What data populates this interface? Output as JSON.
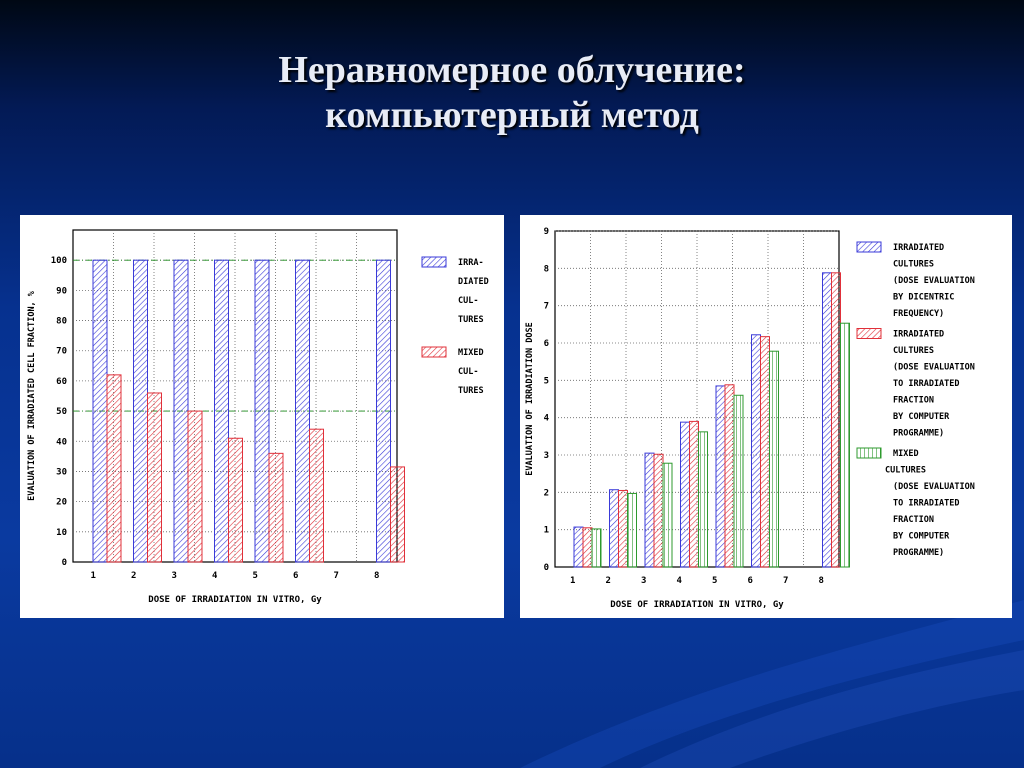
{
  "slide": {
    "title_line1": "Неравномерное облучение:",
    "title_line2": "компьютерный метод"
  },
  "chart_data": [
    {
      "type": "bar",
      "xlabel": "DOSE OF IRRADIATION IN VITRO, Gy",
      "ylabel": "EVALUATION OF IRRADIATED CELL FRACTION, %",
      "ylim": [
        0,
        110
      ],
      "yticks": [
        0,
        10,
        20,
        30,
        40,
        50,
        60,
        70,
        80,
        90,
        100
      ],
      "categories": [
        "1",
        "2",
        "3",
        "4",
        "5",
        "6",
        "7",
        "8"
      ],
      "grid": true,
      "reference_lines": [
        100,
        50
      ],
      "legend_position": "right",
      "series": [
        {
          "name": "IRRA- DIATED CUL- TURES",
          "legend_lines": [
            "IRRA-",
            "DIATED",
            "CUL-",
            "TURES"
          ],
          "color": "#3a3ad8",
          "values": [
            100,
            100,
            100,
            100,
            100,
            100,
            null,
            100
          ]
        },
        {
          "name": "MIXED CUL- TURES",
          "legend_lines": [
            "MIXED",
            "CUL-",
            "TURES"
          ],
          "color": "#e0303a",
          "values": [
            62,
            56,
            50,
            41,
            36,
            44,
            null,
            31.5
          ]
        }
      ]
    },
    {
      "type": "bar",
      "xlabel": "DOSE OF IRRADIATION IN VITRO, Gy",
      "ylabel": "EVALUATION OF IRRADIATION DOSE",
      "ylim": [
        0,
        9
      ],
      "yticks": [
        0,
        1,
        2,
        3,
        4,
        5,
        6,
        7,
        8,
        9
      ],
      "categories": [
        "1",
        "2",
        "3",
        "4",
        "5",
        "6",
        "7",
        "8"
      ],
      "grid": true,
      "legend_position": "right",
      "series": [
        {
          "name": "IRRADIATED CULTURES (DOSE EVALUATION BY DICENTRIC FREQUENCY)",
          "legend_lines": [
            "IRRADIATED",
            "CULTURES",
            "(DOSE EVALUATION",
            "BY DICENTRIC",
            "FREQUENCY)"
          ],
          "color": "#3a3ad8",
          "values": [
            1.07,
            2.07,
            3.05,
            3.88,
            4.85,
            6.22,
            null,
            7.88
          ]
        },
        {
          "name": "IRRADIATED CULTURES (DOSE EVALUATION TO IRRADIATED FRACTION BY COMPUTER PROGRAMME)",
          "legend_lines": [
            "IRRADIATED",
            "CULTURES",
            "(DOSE EVALUATION",
            "TO IRRADIATED",
            "FRACTION",
            "BY COMPUTER",
            "PROGRAMME)"
          ],
          "color": "#e0303a",
          "values": [
            1.05,
            2.05,
            3.02,
            3.9,
            4.88,
            6.17,
            null,
            7.88
          ]
        },
        {
          "name": "MIXED CULTURES (DOSE EVALUATION TO IRRADIATED FRACTION BY COMPUTER PROGRAMME)",
          "legend_lines": [
            "MIXED",
            "CULTURES",
            "(DOSE EVALUATION",
            "TO IRRADIATED",
            "FRACTION",
            "BY COMPUTER",
            "PROGRAMME)"
          ],
          "color": "#2e9a2e",
          "values": [
            1.02,
            1.97,
            2.78,
            3.62,
            4.6,
            5.78,
            null,
            6.53
          ]
        }
      ]
    }
  ]
}
